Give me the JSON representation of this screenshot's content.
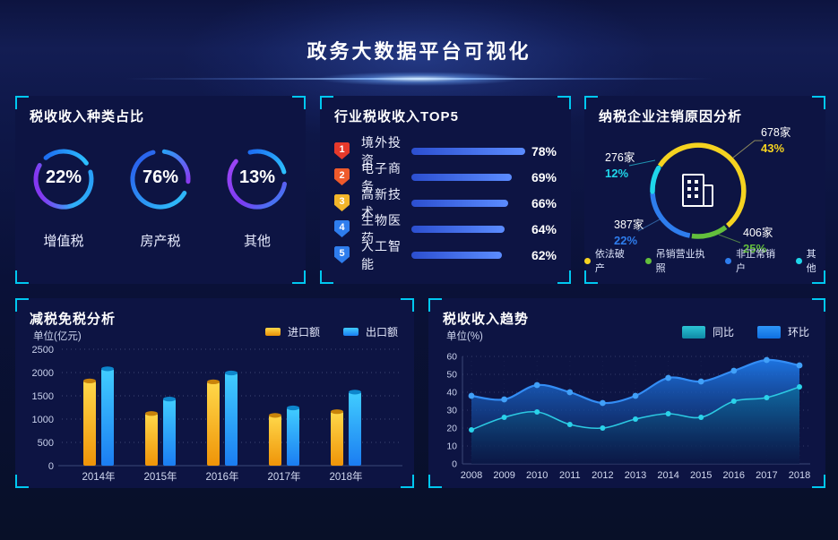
{
  "header": {
    "title": "政务大数据平台可视化"
  },
  "colors": {
    "accent_cyan": "#00c8f0",
    "panel_bg": "#0d1443",
    "gauge_blue": "#2196f3",
    "gauge_purple": "#8a3af0",
    "top5_bar_start": "#2c4fd0",
    "top5_bar_end": "#5b8cff"
  },
  "chart_data": [
    {
      "type": "donut-gauges",
      "title": "税收收入种类占比",
      "unit": "%",
      "items": [
        {
          "label": "增值税",
          "value": 22,
          "pct_label": "22%"
        },
        {
          "label": "房产税",
          "value": 76,
          "pct_label": "76%"
        },
        {
          "label": "其他",
          "value": 13,
          "pct_label": "13%"
        }
      ]
    },
    {
      "type": "bar",
      "orientation": "horizontal",
      "title": "行业税收收入TOP5",
      "xlim": [
        0,
        100
      ],
      "items": [
        {
          "rank": "1",
          "name": "境外投资",
          "value": 78,
          "pct_label": "78%",
          "badge_color": "#e6392b"
        },
        {
          "rank": "2",
          "name": "电子商务",
          "value": 69,
          "pct_label": "69%",
          "badge_color": "#ef5a2b"
        },
        {
          "rank": "3",
          "name": "高新技术",
          "value": 66,
          "pct_label": "66%",
          "badge_color": "#f2b52a"
        },
        {
          "rank": "4",
          "name": "生物医药",
          "value": 64,
          "pct_label": "64%",
          "badge_color": "#2e7ded"
        },
        {
          "rank": "5",
          "name": "人工智能",
          "value": 62,
          "pct_label": "62%",
          "badge_color": "#2e7ded"
        }
      ]
    },
    {
      "type": "pie",
      "title": "纳税企业注销原因分析",
      "center_icon": "building",
      "slices": [
        {
          "label": "依法破产",
          "count": "678家",
          "value": 43,
          "pct_label": "43%",
          "color": "#f5d320",
          "arc": [
            303,
            140
          ]
        },
        {
          "label": "吊销营业执照",
          "count": "406家",
          "value": 25,
          "pct_label": "25%",
          "color": "#63bf3c",
          "arc": [
            143,
            188
          ]
        },
        {
          "label": "非正常销户",
          "count": "387家",
          "value": 22,
          "pct_label": "22%",
          "color": "#2e7ded",
          "arc": [
            190.5,
            267
          ]
        },
        {
          "label": "其他",
          "count": "276家",
          "value": 12,
          "pct_label": "12%",
          "color": "#1fd6ea",
          "arc": [
            269,
            300
          ]
        }
      ],
      "legend_position": "bottom"
    },
    {
      "type": "bar",
      "title": "减税免税分析",
      "ylabel": "单位(亿元)",
      "categories": [
        "2014年",
        "2015年",
        "2016年",
        "2017年",
        "2018年"
      ],
      "series": [
        {
          "name": "进口额",
          "values": [
            1820,
            1120,
            1800,
            1080,
            1160
          ],
          "color_top": "#ffd84a",
          "color_bottom": "#ef9408",
          "cap_color": "#c8830a"
        },
        {
          "name": "出口额",
          "values": [
            2080,
            1430,
            1990,
            1240,
            1580
          ],
          "color_top": "#41cdff",
          "color_bottom": "#1b7df2",
          "cap_color": "#0d86cc"
        }
      ],
      "ylim": [
        0,
        2500
      ],
      "yticks": [
        0,
        500,
        1000,
        1500,
        2000,
        2500
      ],
      "grid": "dotted",
      "legend_position": "top-right"
    },
    {
      "type": "area",
      "title": "税收收入趋势",
      "ylabel": "单位(%)",
      "x": [
        2008,
        2009,
        2010,
        2011,
        2012,
        2013,
        2014,
        2015,
        2016,
        2017,
        2018
      ],
      "series": [
        {
          "name": "同比",
          "values": [
            19,
            26,
            29,
            22,
            20,
            25,
            28,
            26,
            35,
            37,
            43
          ],
          "line_color": "#2cc9e2",
          "dot_color": "#2ad2ea",
          "area_top": "#0f6aa0",
          "area_bottom": "#0a1740"
        },
        {
          "name": "环比",
          "values": [
            38,
            36,
            44,
            40,
            34,
            38,
            48,
            46,
            52,
            58,
            55
          ],
          "line_color": "#338df5",
          "dot_color": "#41a0f8",
          "area_top": "#1e78e8",
          "area_bottom": "#0b1d52"
        }
      ],
      "ylim": [
        0,
        60
      ],
      "yticks": [
        0,
        10,
        20,
        30,
        40,
        50,
        60
      ],
      "grid": "dotted",
      "legend_position": "top-right"
    }
  ]
}
